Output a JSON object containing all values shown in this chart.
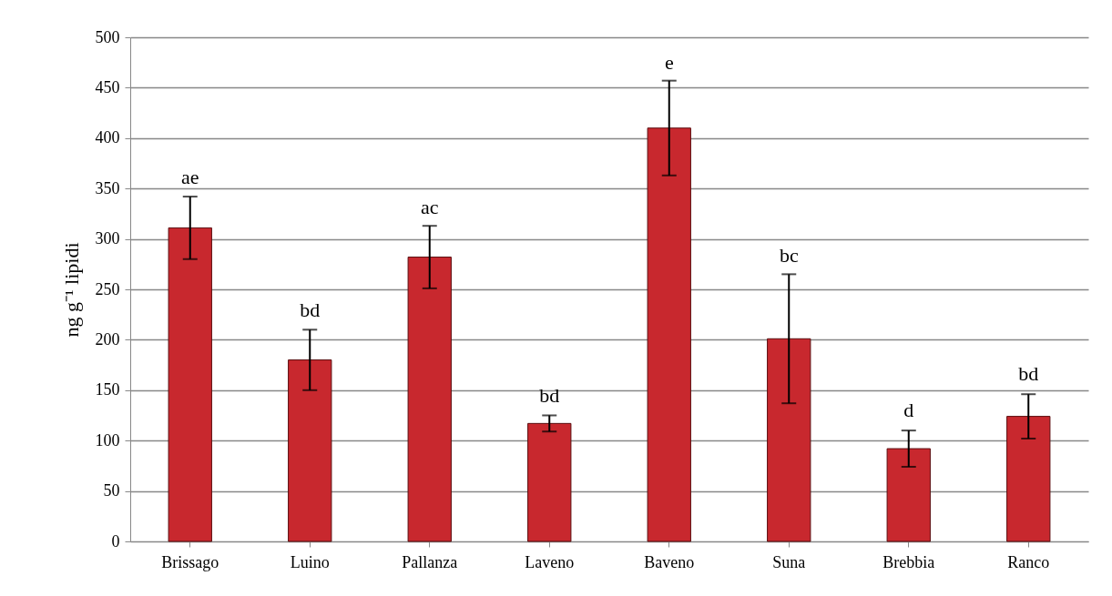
{
  "chart_data": {
    "type": "bar",
    "ylabel": "ng g⁻¹ lipidi",
    "categories": [
      "Brissago",
      "Luino",
      "Pallanza",
      "Laveno",
      "Baveno",
      "Suna",
      "Brebbia",
      "Ranco"
    ],
    "values": [
      311,
      180,
      282,
      117,
      410,
      201,
      92,
      124
    ],
    "errors": [
      31,
      30,
      31,
      8,
      47,
      64,
      18,
      22
    ],
    "color": "#c8282e",
    "ylim": [
      0,
      500
    ],
    "yticks": [
      0,
      50,
      100,
      150,
      200,
      250,
      300,
      350,
      400,
      450,
      500
    ],
    "grid": "y",
    "annotations": [
      {
        "text": "ae",
        "x": "Brissago",
        "y": 343
      },
      {
        "text": "bd",
        "x": "Luino",
        "y": 211
      },
      {
        "text": "ac",
        "x": "Pallanza",
        "y": 313
      },
      {
        "text": "bd",
        "x": "Laveno",
        "y": 126
      },
      {
        "text": "e",
        "x": "Baveno",
        "y": 457
      },
      {
        "text": "bc",
        "x": "Suna",
        "y": 265
      },
      {
        "text": "d",
        "x": "Brebbia",
        "y": 112
      },
      {
        "text": "bd",
        "x": "Ranco",
        "y": 148
      }
    ]
  }
}
